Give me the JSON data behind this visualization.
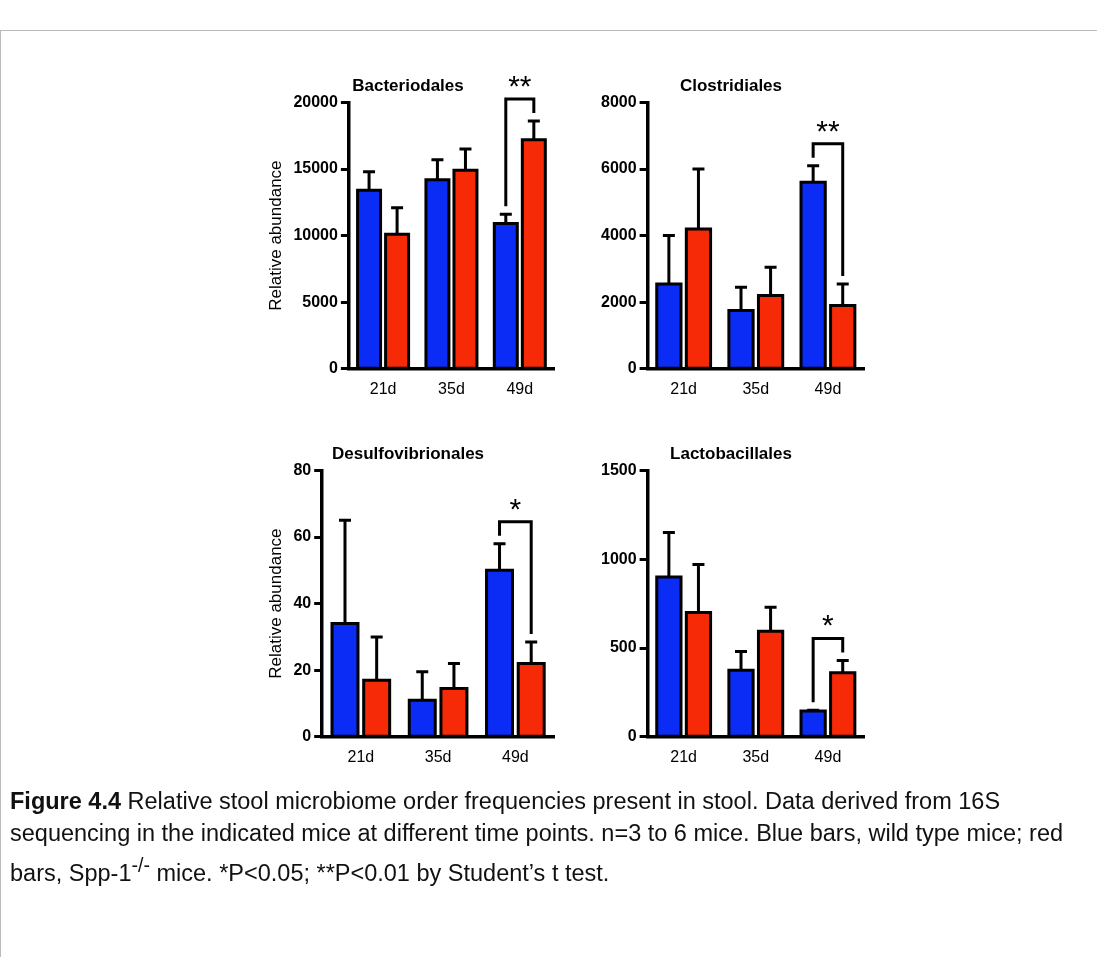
{
  "chart_data": [
    {
      "type": "bar",
      "title": "Bacteriodales",
      "ylabel": "Relative abundance",
      "categories": [
        "21d",
        "35d",
        "49d"
      ],
      "ylim": [
        0,
        20000
      ],
      "yticks": [
        0,
        5000,
        10000,
        15000,
        20000
      ],
      "grid": false,
      "series": [
        {
          "color": "#0a2cf5",
          "values": [
            13400,
            14200,
            10900
          ],
          "errors": [
            [
              13400,
              14800
            ],
            [
              14200,
              15700
            ],
            [
              10900,
              11600
            ]
          ]
        },
        {
          "color": "#f72a07",
          "values": [
            10100,
            14900,
            17200
          ],
          "errors": [
            [
              10100,
              12100
            ],
            [
              14900,
              16500
            ],
            [
              17200,
              18600
            ]
          ]
        }
      ],
      "annotations": [
        "**",
        "Figure 4.4",
        "Relative stool microbiome order frequencies present in stool. Data derived from 16S sequencing in the indicated mice at different time points. n=3 to 6 mice. Blue bars, wild type mice; red bars, Spp-1$^{-/-}$ mice. *P<0.05; **P<0.01 by Student’s t test."
      ]
    },
    {
      "type": "bar",
      "title": "Clostridiales",
      "categories": [
        "21d",
        "35d",
        "49d"
      ],
      "ylim": [
        0,
        8000
      ],
      "yticks": [
        0,
        2000,
        4000,
        6000,
        8000
      ],
      "grid": false,
      "series": [
        {
          "color": "#0a2cf5",
          "values": [
            2550,
            1750,
            5600
          ],
          "errors": [
            [
              2550,
              4000
            ],
            [
              1750,
              2450
            ],
            [
              5600,
              6100
            ]
          ]
        },
        {
          "color": "#f72a07",
          "values": [
            4200,
            2200,
            1900
          ],
          "errors": [
            [
              4200,
              6000
            ],
            [
              2200,
              3050
            ],
            [
              1900,
              2550
            ]
          ]
        }
      ],
      "annotations": [
        "**"
      ]
    },
    {
      "type": "bar",
      "title": "Desulfovibrionales",
      "ylabel": "Relative abundance",
      "categories": [
        "21d",
        "35d",
        "49d"
      ],
      "ylim": [
        0,
        80
      ],
      "yticks": [
        0,
        20,
        40,
        60,
        80
      ],
      "grid": false,
      "series": [
        {
          "color": "#0a2cf5",
          "values": [
            34,
            11,
            50
          ],
          "errors": [
            [
              34,
              65
            ],
            [
              11,
              19.5
            ],
            [
              50,
              58
            ]
          ]
        },
        {
          "color": "#f72a07",
          "values": [
            17,
            14.5,
            22
          ],
          "errors": [
            [
              17,
              30
            ],
            [
              14.5,
              22
            ],
            [
              22,
              28.5
            ]
          ]
        }
      ],
      "annotations": [
        "*"
      ]
    },
    {
      "type": "bar",
      "title": "Lactobacillales",
      "categories": [
        "21d",
        "35d",
        "49d"
      ],
      "ylim": [
        0,
        1500
      ],
      "yticks": [
        0,
        500,
        1000,
        1500
      ],
      "grid": false,
      "series": [
        {
          "color": "#0a2cf5",
          "values": [
            900,
            375,
            145
          ],
          "errors": [
            [
              900,
              1150
            ],
            [
              375,
              480
            ],
            [
              145,
              150
            ]
          ]
        },
        {
          "color": "#f72a07",
          "values": [
            700,
            595,
            360
          ],
          "errors": [
            [
              700,
              970
            ],
            [
              595,
              730
            ],
            [
              360,
              430
            ]
          ]
        }
      ],
      "annotations": [
        "*"
      ]
    }
  ]
}
